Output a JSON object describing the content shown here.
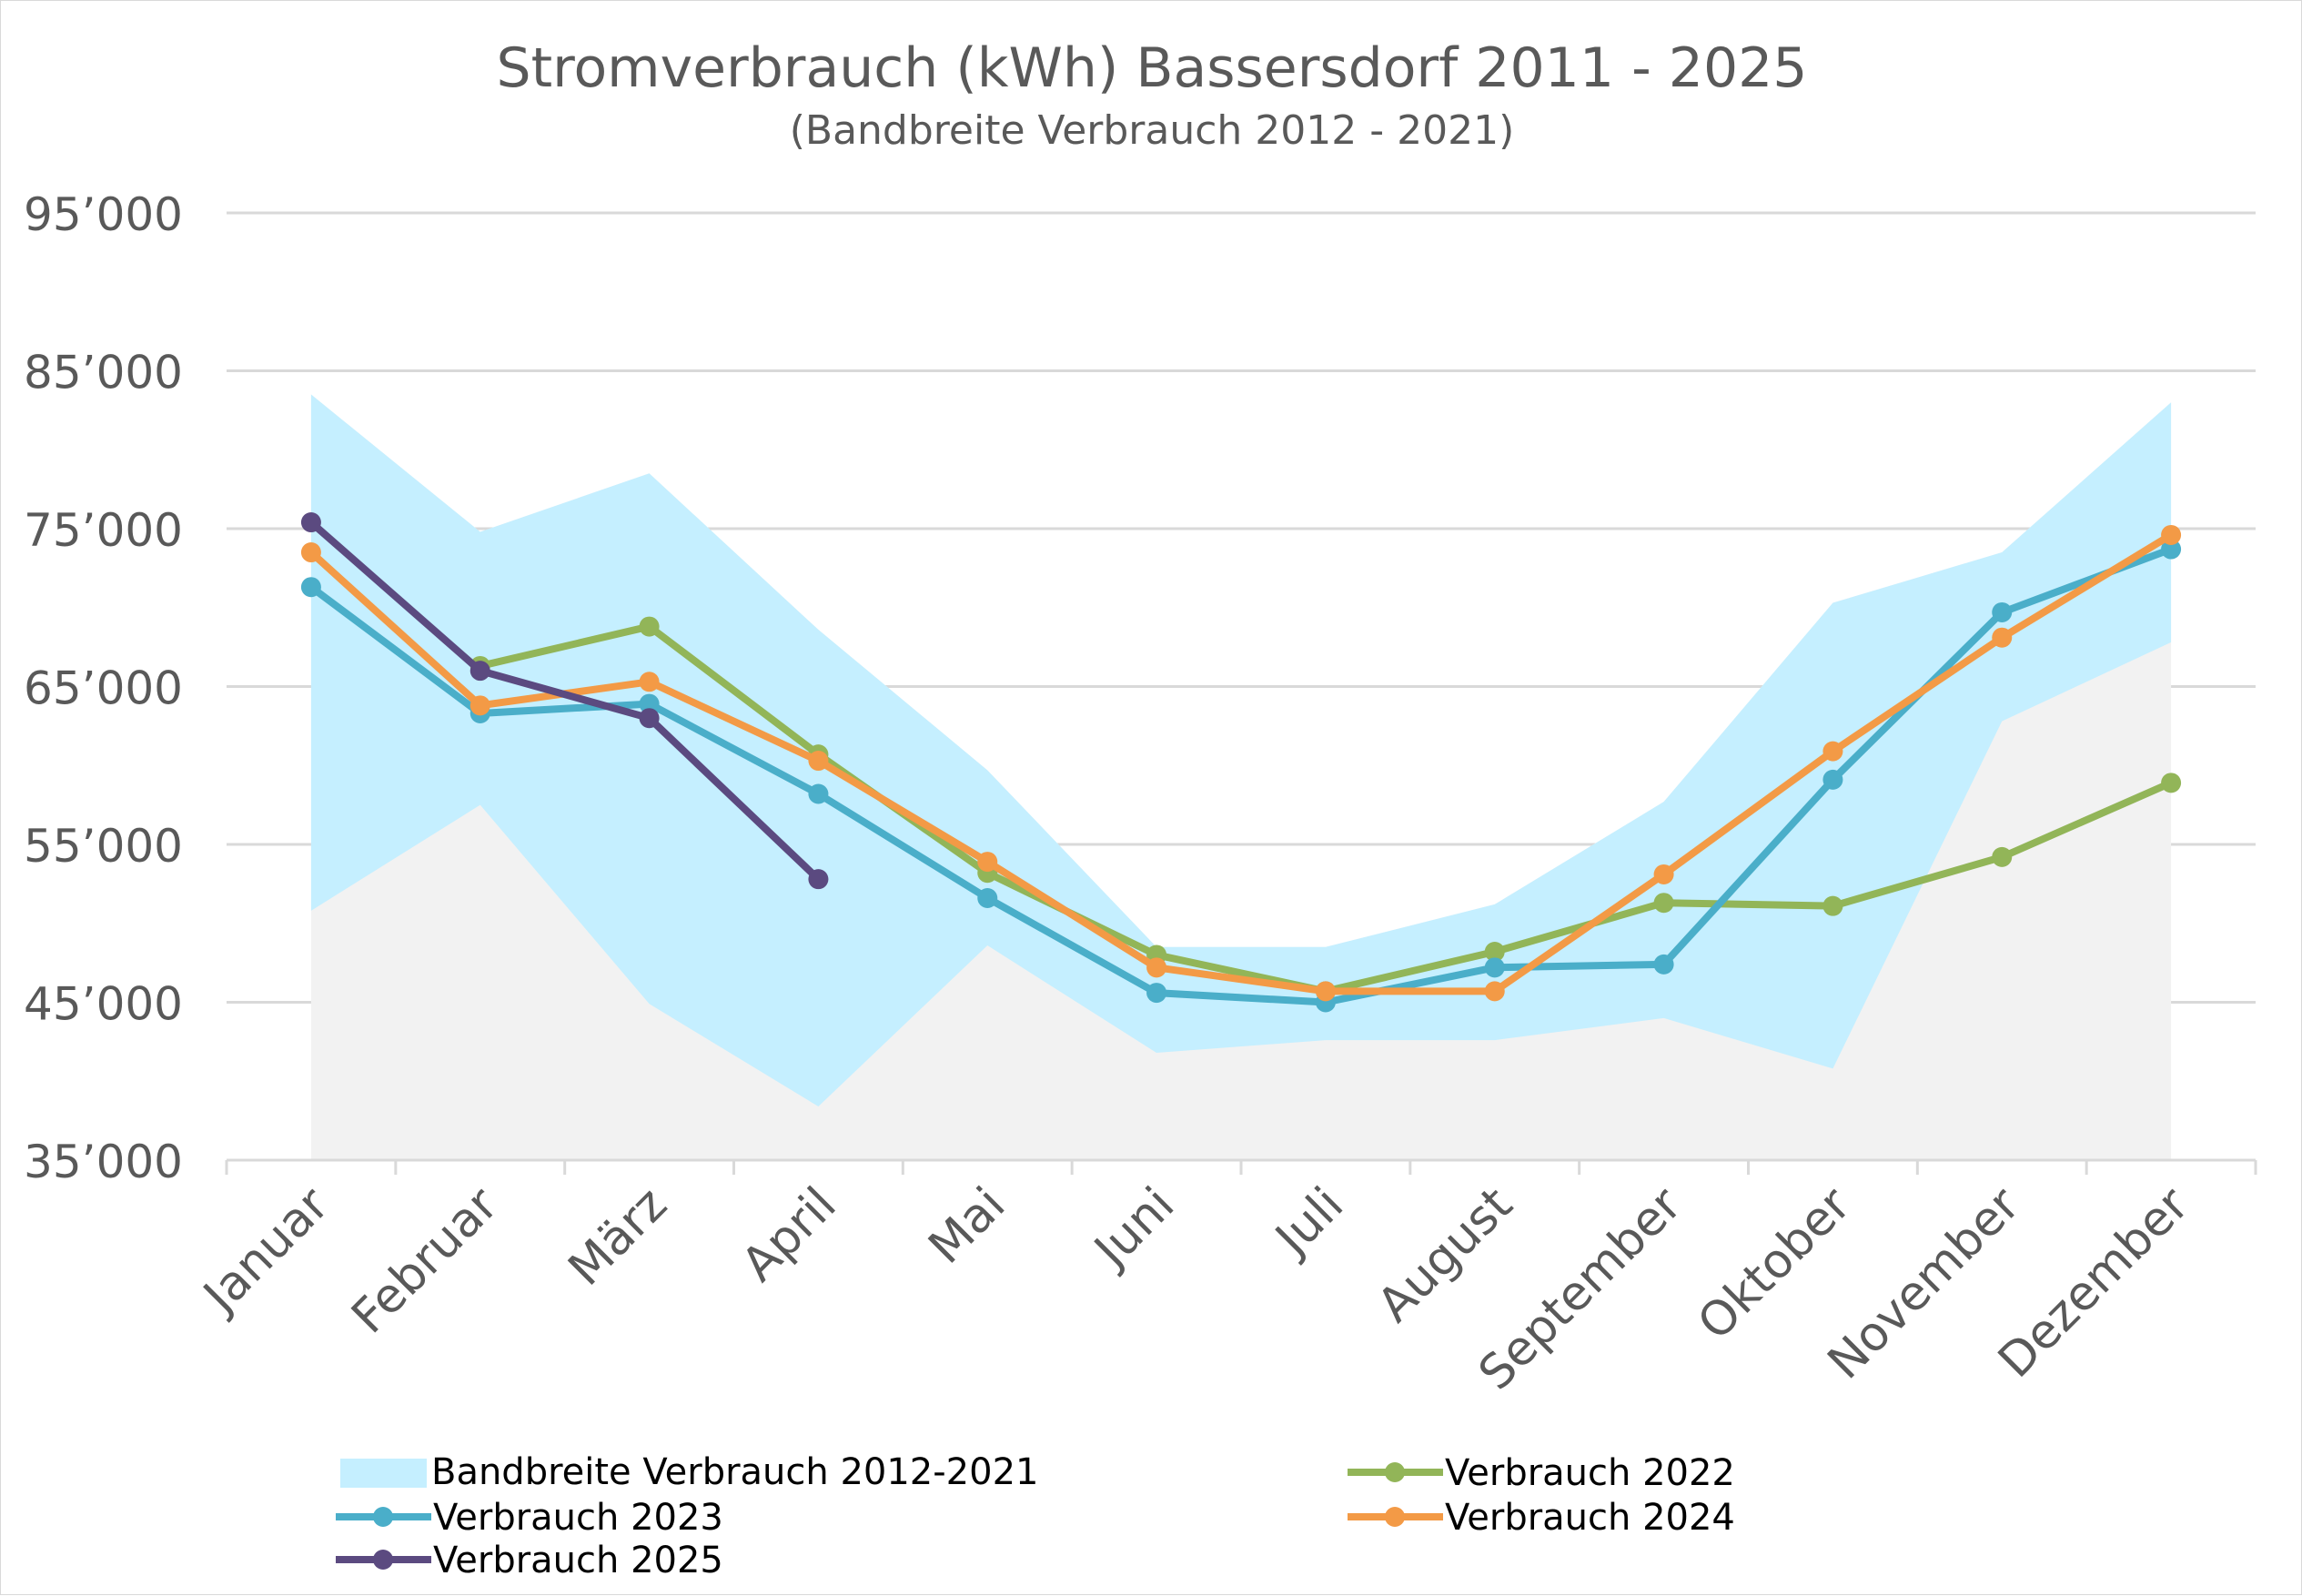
{
  "chart_data": {
    "type": "line",
    "title": "Stromverbrauch (kWh) Bassersdorf 2011 - 2025",
    "subtitle": "(Bandbreite Verbrauch 2012 - 2021)",
    "categories": [
      "Januar",
      "Februar",
      "März",
      "April",
      "Mai",
      "Juni",
      "Juli",
      "August",
      "September",
      "Oktober",
      "November",
      "Dezember"
    ],
    "ylim": [
      35000,
      95000
    ],
    "yticks": [
      35000,
      45000,
      55000,
      65000,
      75000,
      85000,
      95000
    ],
    "ytick_labels": [
      "35’000",
      "45’000",
      "55’000",
      "65’000",
      "75’000",
      "85’000",
      "95’000"
    ],
    "grid": true,
    "legend_position": "bottom",
    "band": {
      "name": "Bandbreite Verbrauch 2012-2021",
      "color": "#c5efff",
      "lower": [
        50800,
        57500,
        44900,
        38400,
        48600,
        41800,
        42600,
        42600,
        44000,
        40800,
        62800,
        67800
      ],
      "upper": [
        83500,
        74800,
        78500,
        68600,
        59700,
        48500,
        48500,
        51200,
        57700,
        70300,
        73500,
        83000
      ]
    },
    "base_fill_color": "#f2f2f2",
    "series": [
      {
        "name": "Verbrauch 2022",
        "color": "#92b558",
        "values": [
          null,
          66300,
          68800,
          60700,
          53200,
          48000,
          45700,
          48200,
          51300,
          51100,
          54200,
          58900
        ]
      },
      {
        "name": "Verbrauch 2023",
        "color": "#4aaec9",
        "values": [
          71300,
          63300,
          63900,
          58200,
          51600,
          45600,
          45000,
          47200,
          47400,
          59100,
          69700,
          73700
        ]
      },
      {
        "name": "Verbrauch 2024",
        "color": "#f39a46",
        "values": [
          73500,
          63800,
          65300,
          60300,
          53900,
          47200,
          45700,
          45700,
          53100,
          60900,
          68100,
          74600
        ]
      },
      {
        "name": "Verbrauch 2025",
        "color": "#5b4a80",
        "values": [
          75400,
          66000,
          63000,
          52800,
          null,
          null,
          null,
          null,
          null,
          null,
          null,
          null
        ]
      }
    ]
  }
}
